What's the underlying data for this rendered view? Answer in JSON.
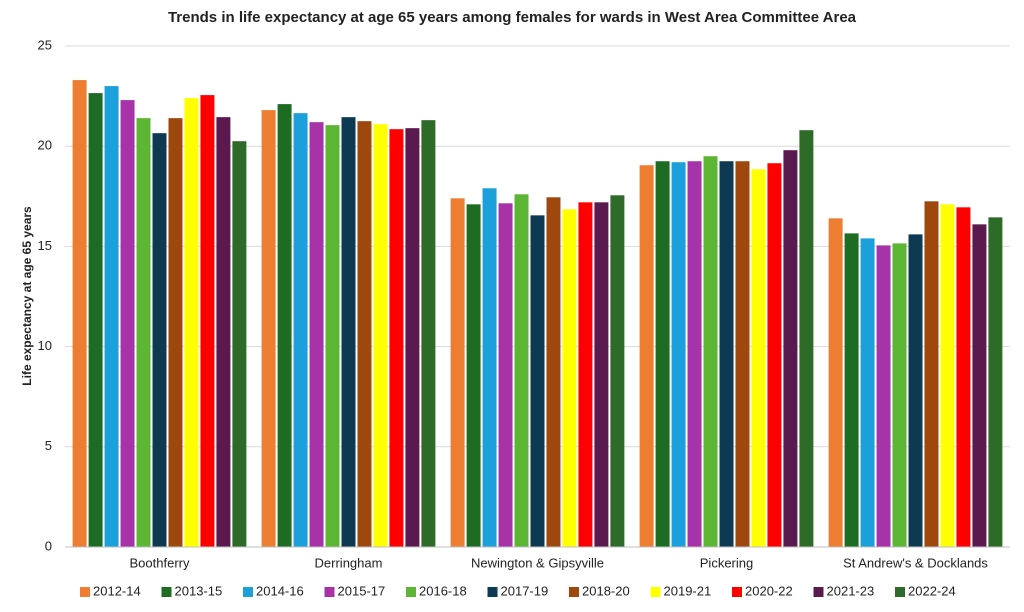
{
  "chart_data": {
    "type": "bar",
    "title": "Trends in life expectancy at  age 65 years among females for wards in West Area Committee Area",
    "y_label": "Life expectancy at  age 65 years",
    "categories": [
      "Boothferry",
      "Derringham",
      "Newington & Gipsyville",
      "Pickering",
      "St Andrew's & Docklands"
    ],
    "series": [
      {
        "name": "2012-14",
        "color": "#ed7d31",
        "values": [
          23.3,
          21.8,
          17.4,
          19.05,
          16.4
        ]
      },
      {
        "name": "2013-15",
        "color": "#1e6b24",
        "values": [
          22.65,
          22.1,
          17.1,
          19.25,
          15.65
        ]
      },
      {
        "name": "2014-16",
        "color": "#1ca0dc",
        "values": [
          23.0,
          21.65,
          17.9,
          19.2,
          15.4
        ]
      },
      {
        "name": "2015-17",
        "color": "#a733a8",
        "values": [
          22.3,
          21.2,
          17.15,
          19.25,
          15.05
        ]
      },
      {
        "name": "2016-18",
        "color": "#5db534",
        "values": [
          21.4,
          21.05,
          17.6,
          19.5,
          15.15
        ]
      },
      {
        "name": "2017-19",
        "color": "#0d3a52",
        "values": [
          20.65,
          21.45,
          16.55,
          19.25,
          15.6
        ]
      },
      {
        "name": "2018-20",
        "color": "#9e480e",
        "values": [
          21.4,
          21.25,
          17.45,
          19.25,
          17.25
        ]
      },
      {
        "name": "2019-21",
        "color": "#ffff00",
        "values": [
          22.4,
          21.1,
          16.85,
          18.85,
          17.1
        ]
      },
      {
        "name": "2020-22",
        "color": "#ff0000",
        "values": [
          22.55,
          20.85,
          17.2,
          19.15,
          16.95
        ]
      },
      {
        "name": "2021-23",
        "color": "#5b1a4f",
        "values": [
          21.45,
          20.9,
          17.2,
          19.8,
          16.1
        ]
      },
      {
        "name": "2022-24",
        "color": "#2f6b28",
        "values": [
          20.25,
          21.3,
          17.55,
          20.8,
          16.45
        ]
      }
    ],
    "ylim": [
      0,
      25
    ],
    "yticks": [
      0,
      5,
      10,
      15,
      20,
      25
    ],
    "grid": true,
    "legend": "bottom"
  }
}
